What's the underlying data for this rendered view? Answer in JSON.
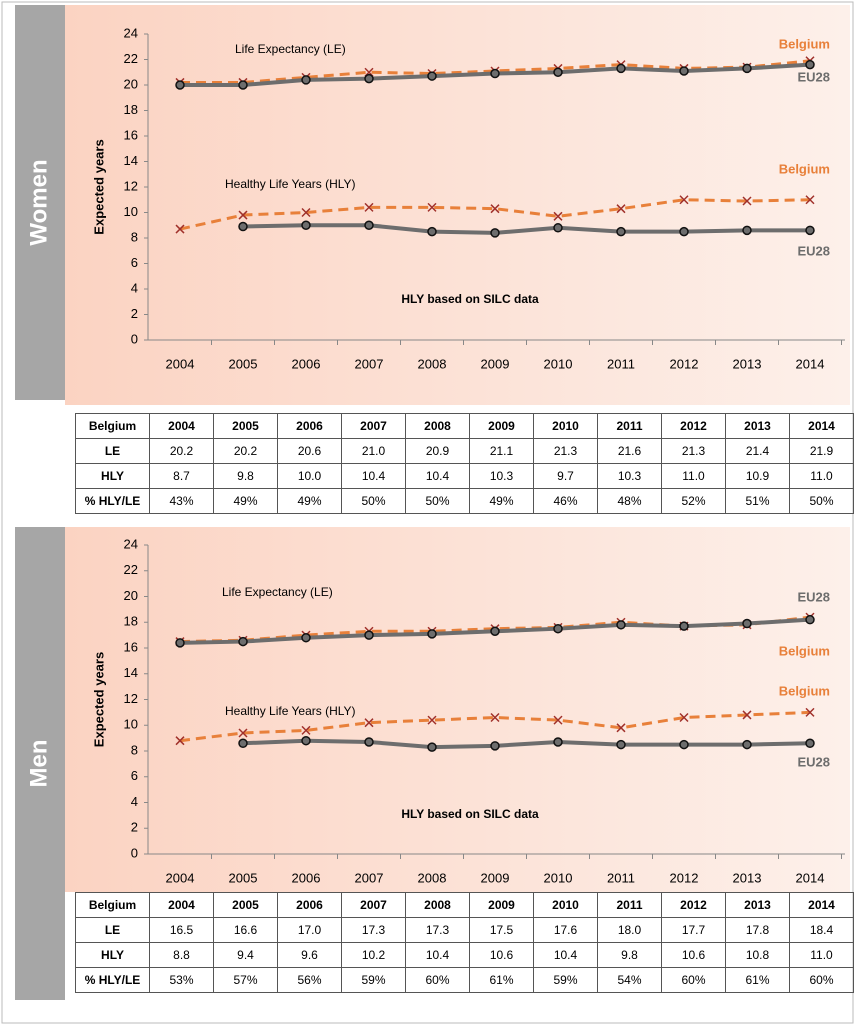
{
  "sections": [
    "Women",
    "Men"
  ],
  "chart_data": [
    {
      "type": "line",
      "ylabel": "Expected years",
      "categories": [
        "2004",
        "2005",
        "2006",
        "2007",
        "2008",
        "2009",
        "2010",
        "2011",
        "2012",
        "2013",
        "2014"
      ],
      "ylim": [
        0,
        24
      ],
      "yticks": [
        0,
        2,
        4,
        6,
        8,
        10,
        12,
        14,
        16,
        18,
        20,
        22,
        24
      ],
      "annotations": [
        "Life Expectancy (LE)",
        "Healthy Life Years (HLY)",
        "HLY based on SILC data"
      ],
      "series": [
        {
          "name": "Belgium",
          "color": "#e8803a",
          "dashed": true,
          "marker": "x",
          "values": [
            20.2,
            20.2,
            20.6,
            21.0,
            20.9,
            21.1,
            21.3,
            21.6,
            21.3,
            21.4,
            21.9
          ]
        },
        {
          "name": "EU28",
          "color": "#6d6d6d",
          "dashed": false,
          "marker": "o",
          "values": [
            20.0,
            20.0,
            20.4,
            20.5,
            20.7,
            20.9,
            21.0,
            21.3,
            21.1,
            21.3,
            21.6
          ]
        },
        {
          "name": "Belgium",
          "color": "#e8803a",
          "dashed": true,
          "marker": "x",
          "values": [
            8.7,
            9.8,
            10.0,
            10.4,
            10.4,
            10.3,
            9.7,
            10.3,
            11.0,
            10.9,
            11.0
          ]
        },
        {
          "name": "EU28",
          "color": "#6d6d6d",
          "dashed": false,
          "marker": "o",
          "values": [
            null,
            8.9,
            9.0,
            9.0,
            8.5,
            8.4,
            8.8,
            8.5,
            8.5,
            8.6,
            8.6
          ]
        }
      ]
    },
    {
      "type": "line",
      "ylabel": "Expected years",
      "categories": [
        "2004",
        "2005",
        "2006",
        "2007",
        "2008",
        "2009",
        "2010",
        "2011",
        "2012",
        "2013",
        "2014"
      ],
      "ylim": [
        0,
        24
      ],
      "yticks": [
        0,
        2,
        4,
        6,
        8,
        10,
        12,
        14,
        16,
        18,
        20,
        22,
        24
      ],
      "annotations": [
        "Life Expectancy (LE)",
        "Healthy Life Years (HLY)",
        "HLY based on SILC data"
      ],
      "series": [
        {
          "name": "Belgium",
          "color": "#e8803a",
          "dashed": true,
          "marker": "x",
          "values": [
            16.5,
            16.6,
            17.0,
            17.3,
            17.3,
            17.5,
            17.6,
            18.0,
            17.7,
            17.8,
            18.4
          ]
        },
        {
          "name": "EU28",
          "color": "#6d6d6d",
          "dashed": false,
          "marker": "o",
          "values": [
            16.4,
            16.5,
            16.8,
            17.0,
            17.1,
            17.3,
            17.5,
            17.8,
            17.7,
            17.9,
            18.2
          ]
        },
        {
          "name": "Belgium",
          "color": "#e8803a",
          "dashed": true,
          "marker": "x",
          "values": [
            8.8,
            9.4,
            9.6,
            10.2,
            10.4,
            10.6,
            10.4,
            9.8,
            10.6,
            10.8,
            11.0
          ]
        },
        {
          "name": "EU28",
          "color": "#6d6d6d",
          "dashed": false,
          "marker": "o",
          "values": [
            null,
            8.6,
            8.8,
            8.7,
            8.3,
            8.4,
            8.7,
            8.5,
            8.5,
            8.5,
            8.6
          ]
        }
      ]
    }
  ],
  "tables": [
    {
      "header": [
        "Belgium",
        "2004",
        "2005",
        "2006",
        "2007",
        "2008",
        "2009",
        "2010",
        "2011",
        "2012",
        "2013",
        "2014"
      ],
      "rows": [
        [
          "LE",
          "20.2",
          "20.2",
          "20.6",
          "21.0",
          "20.9",
          "21.1",
          "21.3",
          "21.6",
          "21.3",
          "21.4",
          "21.9"
        ],
        [
          "HLY",
          "8.7",
          "9.8",
          "10.0",
          "10.4",
          "10.4",
          "10.3",
          "9.7",
          "10.3",
          "11.0",
          "10.9",
          "11.0"
        ],
        [
          "% HLY/LE",
          "43%",
          "49%",
          "49%",
          "50%",
          "50%",
          "49%",
          "46%",
          "48%",
          "52%",
          "51%",
          "50%"
        ]
      ]
    },
    {
      "header": [
        "Belgium",
        "2004",
        "2005",
        "2006",
        "2007",
        "2008",
        "2009",
        "2010",
        "2011",
        "2012",
        "2013",
        "2014"
      ],
      "rows": [
        [
          "LE",
          "16.5",
          "16.6",
          "17.0",
          "17.3",
          "17.3",
          "17.5",
          "17.6",
          "18.0",
          "17.7",
          "17.8",
          "18.4"
        ],
        [
          "HLY",
          "8.8",
          "9.4",
          "9.6",
          "10.2",
          "10.4",
          "10.6",
          "10.4",
          "9.8",
          "10.6",
          "10.8",
          "11.0"
        ],
        [
          "% HLY/LE",
          "53%",
          "57%",
          "56%",
          "59%",
          "60%",
          "61%",
          "59%",
          "54%",
          "60%",
          "61%",
          "60%"
        ]
      ]
    }
  ]
}
